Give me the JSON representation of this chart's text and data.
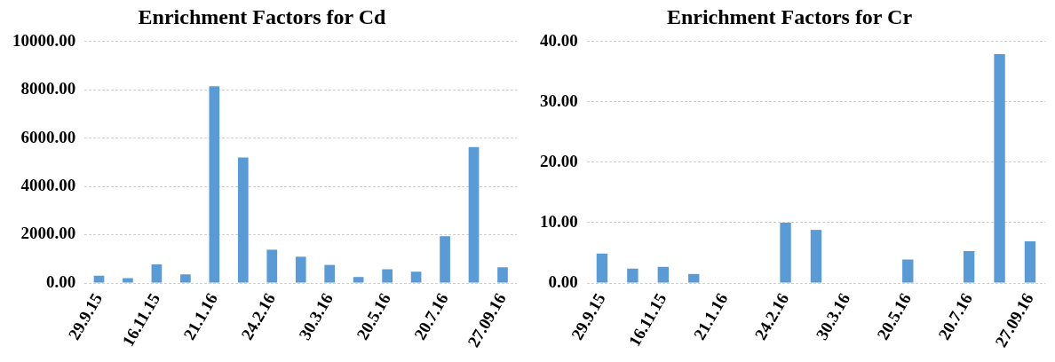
{
  "chart_data": [
    {
      "type": "bar",
      "title": "Enrichment Factors for Cd",
      "categories": [
        "29.9.15",
        null,
        "16.11.15",
        null,
        "21.1.16",
        null,
        "24.2.16",
        null,
        "30.3.16",
        null,
        "20.5.16",
        null,
        "20.7.16",
        null,
        "27.09.16"
      ],
      "values": [
        300,
        200,
        770,
        360,
        8150,
        5200,
        1380,
        1090,
        750,
        250,
        570,
        470,
        1940,
        5630,
        650
      ],
      "color": "#5b9bd5",
      "ylim": [
        0,
        10000
      ],
      "yticks": [
        {
          "value": 0,
          "label": "0.00"
        },
        {
          "value": 2000,
          "label": "2000.00"
        },
        {
          "value": 4000,
          "label": "4000.00"
        },
        {
          "value": 6000,
          "label": "6000.00"
        },
        {
          "value": 8000,
          "label": "8000.00"
        },
        {
          "value": 10000,
          "label": "10000.00"
        }
      ],
      "grid": "y"
    },
    {
      "type": "bar",
      "title": "Enrichment Factors for Cr",
      "categories": [
        "29.9.15",
        null,
        "16.11.15",
        null,
        "21.1.16",
        null,
        "24.2.16",
        null,
        "30.3.16",
        null,
        "20.5.16",
        null,
        "20.7.16",
        null,
        "27.09.16"
      ],
      "values": [
        4.9,
        2.4,
        2.7,
        1.5,
        null,
        null,
        10.0,
        8.8,
        null,
        null,
        3.9,
        null,
        5.3,
        37.9,
        6.9
      ],
      "color": "#5b9bd5",
      "ylim": [
        0,
        40
      ],
      "yticks": [
        {
          "value": 0,
          "label": "0.00"
        },
        {
          "value": 10,
          "label": "10.00"
        },
        {
          "value": 20,
          "label": "20.00"
        },
        {
          "value": 30,
          "label": "30.00"
        },
        {
          "value": 40,
          "label": "40.00"
        }
      ],
      "grid": "y"
    }
  ]
}
